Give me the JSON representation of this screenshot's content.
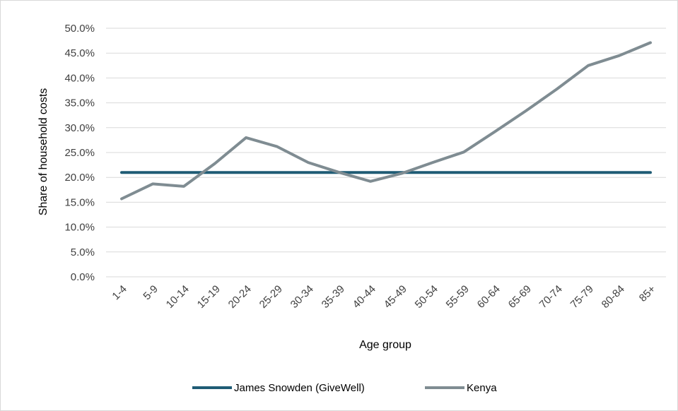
{
  "chart_data": {
    "type": "line",
    "title": "",
    "xlabel": "Age group",
    "ylabel": "Share of  household costs",
    "categories": [
      "1-4",
      "5-9",
      "10-14",
      "15-19",
      "20-24",
      "25-29",
      "30-34",
      "35-39",
      "40-44",
      "45-49",
      "50-54",
      "55-59",
      "60-64",
      "65-69",
      "70-74",
      "75-79",
      "80-84",
      "85+"
    ],
    "y_ticks": [
      "0.0%",
      "5.0%",
      "10.0%",
      "15.0%",
      "20.0%",
      "25.0%",
      "30.0%",
      "35.0%",
      "40.0%",
      "45.0%",
      "50.0%"
    ],
    "ylim": [
      0,
      50
    ],
    "grid": true,
    "legend_position": "bottom",
    "series": [
      {
        "name": "James Snowden (GiveWell)",
        "color": "#1f5c75",
        "values": [
          21.0,
          21.0,
          21.0,
          21.0,
          21.0,
          21.0,
          21.0,
          21.0,
          21.0,
          21.0,
          21.0,
          21.0,
          21.0,
          21.0,
          21.0,
          21.0,
          21.0,
          21.0
        ]
      },
      {
        "name": "Kenya",
        "color": "#7f8c92",
        "values": [
          15.7,
          18.7,
          18.2,
          22.8,
          28.0,
          26.2,
          23.0,
          21.0,
          19.2,
          20.8,
          23.0,
          25.1,
          29.2,
          33.4,
          37.8,
          42.5,
          44.5,
          47.1
        ]
      }
    ]
  }
}
